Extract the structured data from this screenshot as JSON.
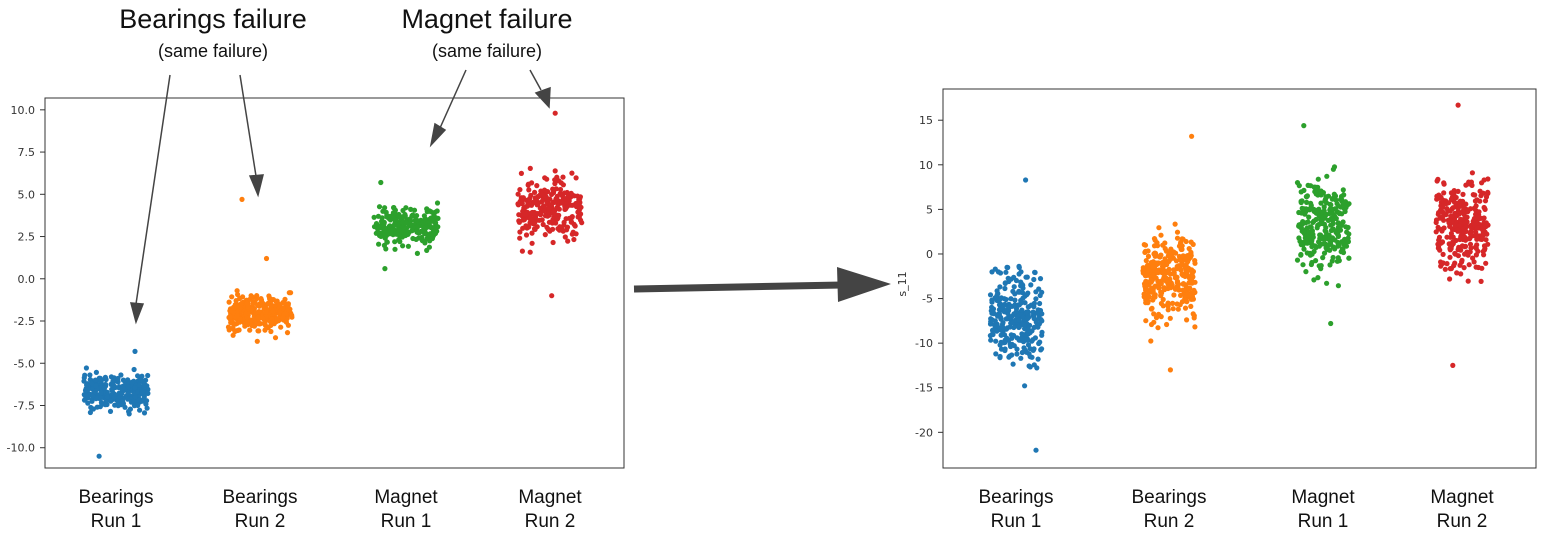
{
  "chart_data": [
    {
      "type": "scatter",
      "style": "strip",
      "ylim": [
        -11.2,
        10.7
      ],
      "yticks": [
        "10.0",
        "7.5",
        "5.0",
        "2.5",
        "0.0",
        "-2.5",
        "-5.0",
        "-7.5",
        "-10.0"
      ],
      "ytick_values": [
        10,
        7.5,
        5,
        2.5,
        0,
        -2.5,
        -5,
        -7.5,
        -10
      ],
      "ylabel": "",
      "categories": [
        "Bearings\nRun 1",
        "Bearings\nRun 2",
        "Magnet\nRun 1",
        "Magnet\nRun 2"
      ],
      "grid": false,
      "series": [
        {
          "color": "#1f77b4",
          "center": -6.7,
          "spread": 0.9,
          "min": -10.5,
          "max": -4.3,
          "count": 260
        },
        {
          "color": "#ff7f0e",
          "center": -2.0,
          "spread": 0.9,
          "min": -3.7,
          "max": 1.2,
          "count": 280,
          "outliers": [
            4.7
          ]
        },
        {
          "color": "#2ca02c",
          "center": 3.1,
          "spread": 1.0,
          "min": 0.6,
          "max": 5.7,
          "count": 230
        },
        {
          "color": "#d62728",
          "center": 4.2,
          "spread": 1.6,
          "min": -1.0,
          "max": 9.8,
          "count": 260
        }
      ]
    },
    {
      "type": "scatter",
      "style": "strip",
      "ylim": [
        -24,
        18.5
      ],
      "yticks": [
        "15",
        "10",
        "5",
        "0",
        "-5",
        "-10",
        "-15",
        "-20"
      ],
      "ytick_values": [
        15,
        10,
        5,
        0,
        -5,
        -10,
        -15,
        -20
      ],
      "ylabel": "s_11",
      "categories": [
        "Bearings\nRun 1",
        "Bearings\nRun 2",
        "Magnet\nRun 1",
        "Magnet\nRun 2"
      ],
      "grid": false,
      "series": [
        {
          "color": "#1f77b4",
          "center": -7.5,
          "spread": 4.8,
          "min": -22,
          "max": 8.3,
          "count": 290
        },
        {
          "color": "#ff7f0e",
          "center": -2.5,
          "spread": 4.2,
          "min": -13,
          "max": 13.2,
          "count": 310
        },
        {
          "color": "#2ca02c",
          "center": 3.0,
          "spread": 4.5,
          "min": -7.8,
          "max": 14.4,
          "count": 280
        },
        {
          "color": "#d62728",
          "center": 3.5,
          "spread": 4.6,
          "min": -12.5,
          "max": 16.7,
          "count": 300
        }
      ]
    }
  ],
  "annotations": {
    "bearings_title": "Bearings failure",
    "bearings_sub": "(same failure)",
    "magnet_title": "Magnet failure",
    "magnet_sub": "(same failure)"
  }
}
